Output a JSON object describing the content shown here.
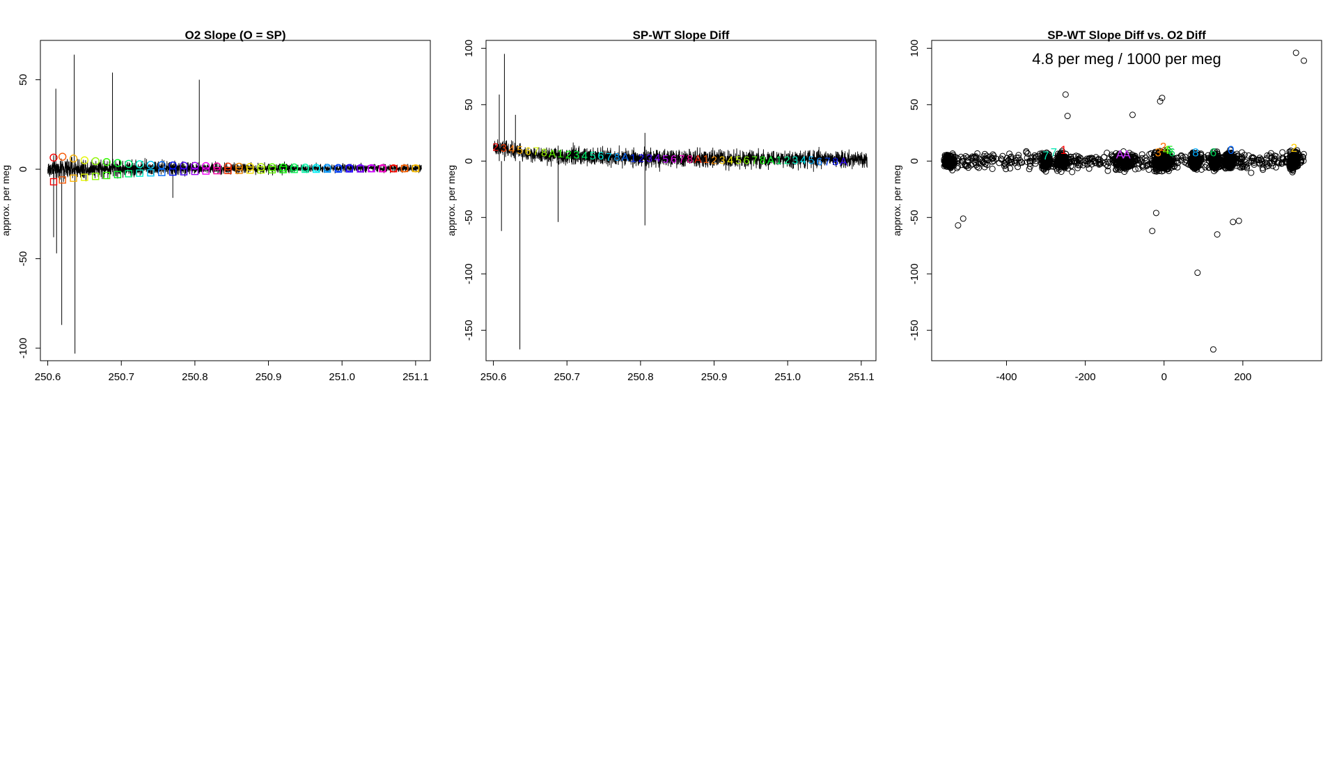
{
  "chart_data": [
    {
      "type": "line",
      "title": "O2 Slope (O = SP)",
      "xlabel": "",
      "ylabel": "approx. per meg",
      "xlim": [
        250.59,
        251.12
      ],
      "ylim": [
        -107,
        72
      ],
      "xticks": [
        "250.6",
        "250.7",
        "250.8",
        "250.9",
        "251.0",
        "251.1"
      ],
      "yticks": [
        "-100",
        "-50",
        "0",
        "50"
      ],
      "series": [
        {
          "role": "raw trace",
          "color": "#000000",
          "x_range": [
            250.6,
            251.108
          ],
          "band": {
            "x": [
              250.6,
              250.65,
              250.7,
              250.8,
              250.9,
              251.0,
              251.108
            ],
            "lower": [
              -10,
              -8,
              -7,
              -5,
              -4,
              -3,
              -3
            ],
            "upper": [
              10,
              9,
              8,
              6,
              5,
              4,
              4
            ]
          },
          "spikes": [
            {
              "x": 250.608,
              "y": -38
            },
            {
              "x": 250.611,
              "y": 45
            },
            {
              "x": 250.612,
              "y": -47
            },
            {
              "x": 250.619,
              "y": -87
            },
            {
              "x": 250.636,
              "y": 64
            },
            {
              "x": 250.637,
              "y": -103
            },
            {
              "x": 250.688,
              "y": 54
            },
            {
              "x": 250.806,
              "y": 50
            },
            {
              "x": 250.77,
              "y": -16
            }
          ]
        },
        {
          "role": "SP cycle means",
          "marker": "circle",
          "x": [
            250.608,
            250.62,
            250.635,
            250.65,
            250.665,
            250.68,
            250.695,
            250.71,
            250.725,
            250.74,
            250.755,
            250.77,
            250.785,
            250.8,
            250.815,
            250.83,
            250.845,
            250.86,
            250.875,
            250.89,
            250.905,
            250.92,
            250.935,
            250.95,
            250.965,
            250.98,
            250.995,
            251.01,
            251.025,
            251.04,
            251.055,
            251.07,
            251.085,
            251.1
          ],
          "y": [
            6.5,
            7,
            6,
            5,
            4.5,
            4,
            3.5,
            3,
            2.8,
            2.5,
            2.3,
            2.1,
            2,
            1.9,
            1.8,
            1.6,
            1.5,
            1.4,
            1.3,
            1.2,
            1.1,
            1,
            1,
            0.9,
            0.8,
            0.8,
            0.7,
            0.7,
            0.6,
            0.6,
            0.6,
            0.5,
            0.5,
            0.5
          ]
        },
        {
          "role": "WT cycle means",
          "marker": "square",
          "x": [
            250.608,
            250.62,
            250.635,
            250.65,
            250.665,
            250.68,
            250.695,
            250.71,
            250.725,
            250.74,
            250.755,
            250.77,
            250.785,
            250.8,
            250.815,
            250.83,
            250.845,
            250.86,
            250.875,
            250.89,
            250.905,
            250.92,
            250.935,
            250.95,
            250.965,
            250.98,
            250.995,
            251.01,
            251.025,
            251.04,
            251.055,
            251.07,
            251.085,
            251.1
          ],
          "y": [
            -7,
            -6,
            -5,
            -4.5,
            -4,
            -3.5,
            -3,
            -2.5,
            -2.2,
            -2,
            -1.8,
            -1.6,
            -1.4,
            -1.2,
            -1,
            -0.8,
            -0.7,
            -0.6,
            -0.5,
            -0.4,
            -0.3,
            -0.2,
            -0.1,
            0,
            0,
            0.1,
            0.1,
            0.2,
            0.2,
            0.3,
            0.3,
            0.3,
            0.4,
            0.4
          ]
        }
      ]
    },
    {
      "type": "line",
      "title": "SP-WT Slope Diff",
      "xlabel": "",
      "ylabel": "approx. per meg",
      "xlim": [
        250.59,
        251.12
      ],
      "ylim": [
        -177,
        107
      ],
      "xticks": [
        "250.6",
        "250.7",
        "250.8",
        "250.9",
        "251.0",
        "251.1"
      ],
      "yticks": [
        "-150",
        "-100",
        "-50",
        "0",
        "50",
        "100"
      ],
      "series": [
        {
          "role": "raw trace",
          "color": "#000000",
          "x_range": [
            250.6,
            251.108
          ],
          "band": {
            "x": [
              250.6,
              250.65,
              250.7,
              250.8,
              250.9,
              251.0,
              251.108
            ],
            "lower": [
              2,
              -5,
              -8,
              -10,
              -10,
              -11,
              -11
            ],
            "upper": [
              24,
              18,
              17,
              15,
              14,
              14,
              14
            ]
          },
          "spikes": [
            {
              "x": 250.608,
              "y": 59
            },
            {
              "x": 250.611,
              "y": -62
            },
            {
              "x": 250.615,
              "y": 95
            },
            {
              "x": 250.63,
              "y": 41
            },
            {
              "x": 250.636,
              "y": -167
            },
            {
              "x": 250.688,
              "y": -54
            },
            {
              "x": 250.806,
              "y": -57
            },
            {
              "x": 250.806,
              "y": 25
            }
          ]
        },
        {
          "role": "cycle labels",
          "labels": [
            "2",
            "3",
            "4",
            "5",
            "6",
            "7",
            "8",
            "A",
            "1",
            "2",
            "3",
            "4",
            "5",
            "6",
            "7",
            "8",
            "A",
            "1",
            "2",
            "3",
            "4",
            "5",
            "6",
            "7",
            "8",
            "A",
            "1",
            "2",
            "3",
            "4",
            "5",
            "6",
            "7",
            "8",
            "A",
            "1",
            "2",
            "3",
            "4",
            "5",
            "6",
            "7",
            "8",
            "A"
          ],
          "x": [
            250.603,
            250.614,
            250.625,
            250.636,
            250.647,
            250.658,
            250.669,
            250.68,
            250.691,
            250.702,
            250.713,
            250.724,
            250.735,
            250.746,
            250.757,
            250.768,
            250.779,
            250.79,
            250.801,
            250.812,
            250.823,
            250.834,
            250.845,
            250.856,
            250.867,
            250.878,
            250.889,
            250.9,
            250.911,
            250.922,
            250.933,
            250.944,
            250.955,
            250.966,
            250.977,
            250.988,
            250.999,
            251.01,
            251.021,
            251.032,
            251.043,
            251.054,
            251.065,
            251.076
          ],
          "y": [
            13,
            12,
            11,
            10,
            9,
            9,
            8,
            7,
            7,
            6,
            6,
            5,
            5,
            5,
            4,
            4,
            4,
            3,
            3,
            3,
            3,
            2,
            2,
            2,
            2,
            2,
            2,
            1,
            1,
            1,
            1,
            1,
            1,
            1,
            1,
            1,
            1,
            1,
            1,
            1,
            0,
            0,
            0,
            0
          ]
        }
      ]
    },
    {
      "type": "scatter",
      "title": "SP-WT Slope Diff vs. O2 Diff",
      "annotation": "4.8 per meg / 1000 per meg",
      "xlabel": "",
      "ylabel": "approx. per meg",
      "xlim": [
        -590,
        400
      ],
      "ylim": [
        -177,
        107
      ],
      "xticks": [
        "-400",
        "-200",
        "0",
        "200"
      ],
      "yticks": [
        "-150",
        "-100",
        "-50",
        "0",
        "50",
        "100"
      ],
      "marker": "open circle",
      "clusters": [
        {
          "x_center": -545,
          "x_spread": 12,
          "y_spread": 6
        },
        {
          "x_center": -300,
          "x_spread": 10,
          "y_spread": 8
        },
        {
          "x_center": -260,
          "x_spread": 14,
          "y_spread": 8
        },
        {
          "x_center": -100,
          "x_spread": 30,
          "y_spread": 8
        },
        {
          "x_center": -10,
          "x_spread": 22,
          "y_spread": 10
        },
        {
          "x_center": 5,
          "x_spread": 14,
          "y_spread": 9
        },
        {
          "x_center": 80,
          "x_spread": 12,
          "y_spread": 8
        },
        {
          "x_center": 130,
          "x_spread": 12,
          "y_spread": 8
        },
        {
          "x_center": 165,
          "x_spread": 12,
          "y_spread": 8
        },
        {
          "x_center": 330,
          "x_spread": 12,
          "y_spread": 10
        }
      ],
      "outliers": [
        {
          "x": -523,
          "y": -57
        },
        {
          "x": -510,
          "y": -51
        },
        {
          "x": -250,
          "y": 59
        },
        {
          "x": -245,
          "y": 40
        },
        {
          "x": -80,
          "y": 41
        },
        {
          "x": -30,
          "y": -62
        },
        {
          "x": -20,
          "y": -46
        },
        {
          "x": -10,
          "y": 53
        },
        {
          "x": -5,
          "y": 56
        },
        {
          "x": 85,
          "y": -99
        },
        {
          "x": 125,
          "y": -167
        },
        {
          "x": 135,
          "y": -65
        },
        {
          "x": 175,
          "y": -54
        },
        {
          "x": 190,
          "y": -53
        },
        {
          "x": 335,
          "y": 96
        },
        {
          "x": 355,
          "y": 89
        }
      ],
      "colored_labels": [
        {
          "label": "7",
          "x": -300,
          "y": 5,
          "color": "#00e5b0"
        },
        {
          "label": "7",
          "x": -280,
          "y": 8,
          "color": "#00e5b0"
        },
        {
          "label": "1",
          "x": -255,
          "y": 10,
          "color": "#ff0000"
        },
        {
          "label": "A",
          "x": -112,
          "y": 6,
          "color": "#cc33ff"
        },
        {
          "label": "A",
          "x": -95,
          "y": 6,
          "color": "#cc33ff"
        },
        {
          "label": "3",
          "x": -15,
          "y": 8,
          "color": "#ff8800"
        },
        {
          "label": "2",
          "x": -2,
          "y": 13,
          "color": "#ff6a00"
        },
        {
          "label": "4",
          "x": 5,
          "y": 10,
          "color": "#88ff00"
        },
        {
          "label": "5",
          "x": 15,
          "y": 10,
          "color": "#22ee22"
        },
        {
          "label": "6",
          "x": 20,
          "y": 8,
          "color": "#00cc55"
        },
        {
          "label": "8",
          "x": 80,
          "y": 8,
          "color": "#00aaff"
        },
        {
          "label": "6",
          "x": 125,
          "y": 8,
          "color": "#00cc55"
        },
        {
          "label": "0",
          "x": 170,
          "y": 10,
          "color": "#0066ff"
        },
        {
          "label": "2",
          "x": 330,
          "y": 12,
          "color": "#ffcc00"
        }
      ]
    }
  ]
}
